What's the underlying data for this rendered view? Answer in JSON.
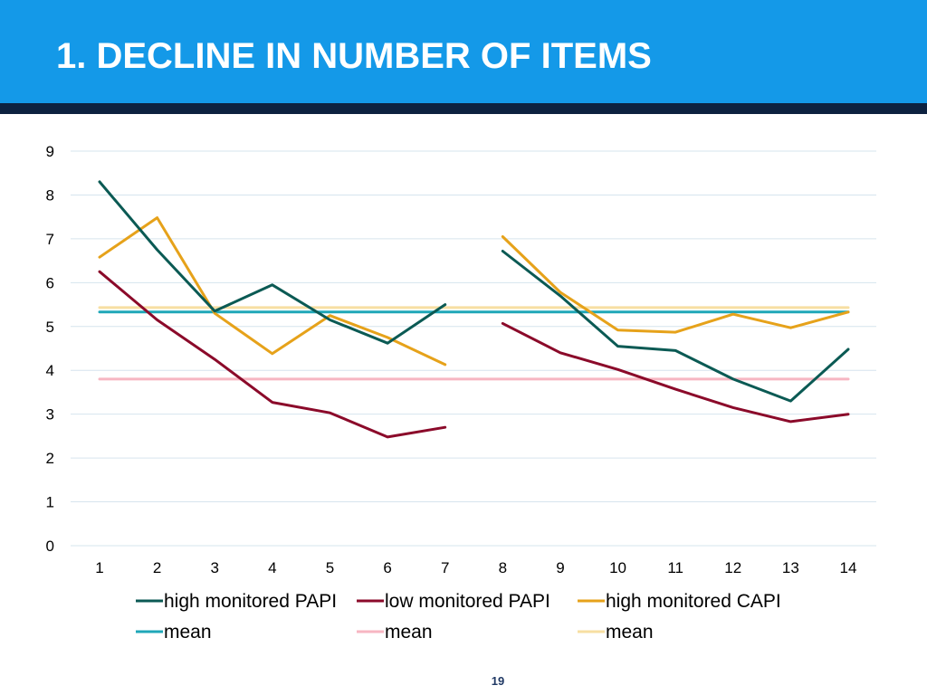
{
  "slide": {
    "title": "1. DECLINE IN NUMBER OF ITEMS",
    "page_number": "19"
  },
  "colors": {
    "header_bg": "#1499e8",
    "header_rule": "#0d2240",
    "grid": "#d6e4ee"
  },
  "chart_data": {
    "type": "line",
    "title": "",
    "xlabel": "",
    "ylabel": "",
    "x": [
      1,
      2,
      3,
      4,
      5,
      6,
      7,
      8,
      9,
      10,
      11,
      12,
      13,
      14
    ],
    "ylim": [
      0,
      9
    ],
    "yticks": [
      0,
      1,
      2,
      3,
      4,
      5,
      6,
      7,
      8,
      9
    ],
    "grid": true,
    "legend_position": "bottom",
    "series": [
      {
        "name": "high monitored PAPI",
        "color": "#0b5a54",
        "values": [
          8.3,
          6.75,
          5.35,
          5.95,
          5.15,
          4.62,
          5.5,
          6.72,
          5.7,
          4.55,
          4.45,
          3.8,
          3.3,
          4.48
        ]
      },
      {
        "name": "low monitored PAPI",
        "color": "#8b0a2a",
        "values": [
          6.25,
          5.15,
          4.25,
          3.27,
          3.03,
          2.48,
          2.7,
          5.07,
          4.4,
          4.02,
          3.57,
          3.15,
          2.83,
          3.0
        ]
      },
      {
        "name": "high monitored CAPI",
        "color": "#e6a21a",
        "values": [
          6.58,
          7.48,
          5.3,
          4.38,
          5.25,
          4.75,
          4.13,
          7.05,
          5.78,
          4.92,
          4.87,
          5.28,
          4.97,
          5.33
        ]
      },
      {
        "name": "mean",
        "color": "#1fa7b8",
        "values": [
          5.33,
          5.33,
          5.33,
          5.33,
          5.33,
          5.33,
          5.33,
          5.33,
          5.33,
          5.33,
          5.33,
          5.33,
          5.33,
          5.33
        ]
      },
      {
        "name": "mean",
        "color": "#f7b6c2",
        "values": [
          3.8,
          3.8,
          3.8,
          3.8,
          3.8,
          3.8,
          3.8,
          3.8,
          3.8,
          3.8,
          3.8,
          3.8,
          3.8,
          3.8
        ]
      },
      {
        "name": "mean",
        "color": "#f7dfa2",
        "values": [
          5.43,
          5.43,
          5.43,
          5.43,
          5.43,
          5.43,
          5.43,
          5.43,
          5.43,
          5.43,
          5.43,
          5.43,
          5.43,
          5.43
        ]
      }
    ],
    "segment_break_after_x": 7
  }
}
